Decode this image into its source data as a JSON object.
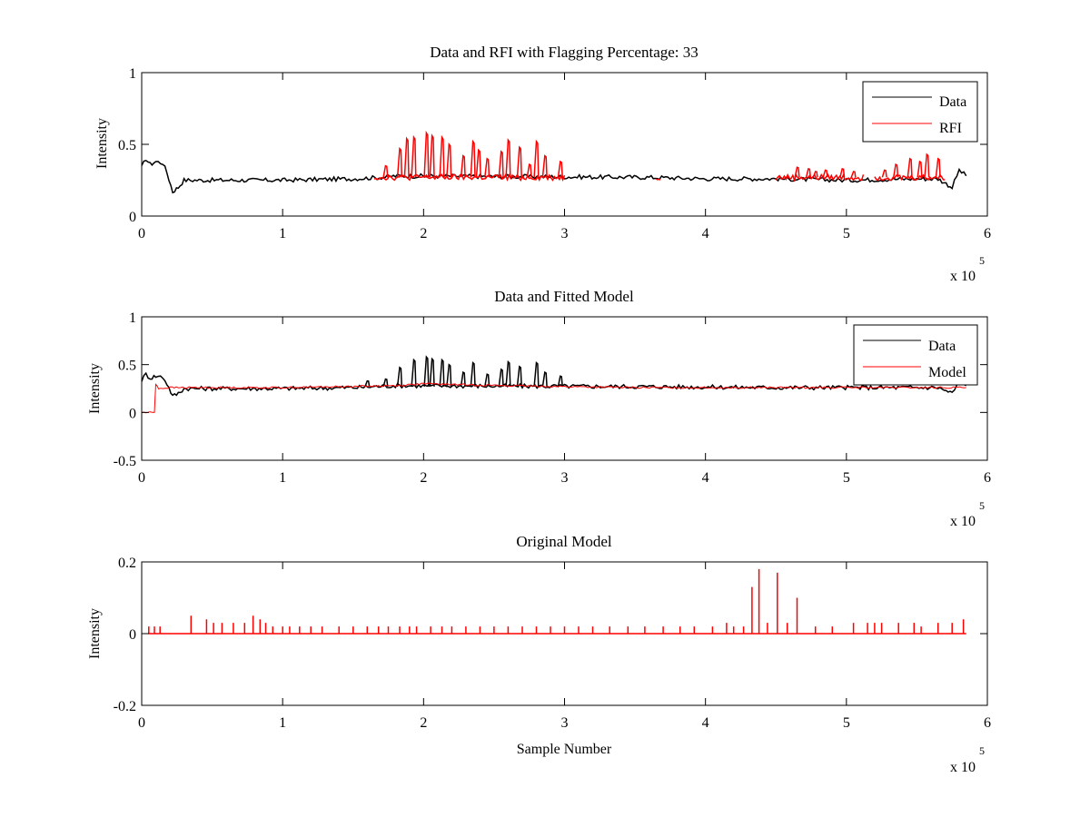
{
  "chart_data": [
    {
      "type": "line",
      "title": "Data and RFI with Flagging Percentage: 33",
      "xlabel": "",
      "ylabel": "Intensity",
      "xlim": [
        0,
        600000
      ],
      "ylim": [
        0,
        1
      ],
      "x_ticks": [
        "0",
        "1",
        "2",
        "3",
        "4",
        "5",
        "6"
      ],
      "y_ticks": [
        "0",
        "0.5",
        "1"
      ],
      "x_exponent_label": "x 10",
      "x_exponent": "5",
      "grid": false,
      "legend_position": "top-right",
      "series": [
        {
          "name": "Data",
          "color": "#000000",
          "x": [
            0,
            3000,
            6000,
            10000,
            15000,
            18000,
            22000,
            26000,
            30000,
            50000,
            100000,
            150000,
            170000,
            180000,
            360000,
            400000,
            450000,
            500000,
            550000,
            565000,
            575000,
            580000,
            585000
          ],
          "y": [
            0.34,
            0.4,
            0.36,
            0.38,
            0.37,
            0.3,
            0.17,
            0.2,
            0.25,
            0.25,
            0.25,
            0.26,
            0.27,
            0.28,
            0.27,
            0.26,
            0.26,
            0.25,
            0.26,
            0.26,
            0.2,
            0.32,
            0.28
          ]
        },
        {
          "name": "RFI",
          "color": "#ff0000",
          "segments": [
            [
              165000,
              300000
            ],
            [
              365000,
              368000
            ],
            [
              450000,
              512000
            ],
            [
              520000,
              570000
            ]
          ],
          "spikes": {
            "x": [
              173000,
              183000,
              188000,
              193000,
              202000,
              206000,
              213000,
              218000,
              228000,
              235000,
              239000,
              245000,
              255000,
              260000,
              268000,
              275000,
              280000,
              286000,
              297000,
              465000,
              473000,
              478000,
              485000,
              497000,
              505000,
              527000,
              535000,
              545000,
              552000,
              557000,
              565000
            ],
            "y": [
              0.35,
              0.47,
              0.54,
              0.55,
              0.58,
              0.56,
              0.55,
              0.5,
              0.42,
              0.52,
              0.46,
              0.4,
              0.45,
              0.53,
              0.48,
              0.36,
              0.52,
              0.42,
              0.38,
              0.34,
              0.33,
              0.31,
              0.32,
              0.33,
              0.31,
              0.32,
              0.36,
              0.4,
              0.38,
              0.43,
              0.4
            ]
          },
          "baseline": 0.27
        }
      ]
    },
    {
      "type": "line",
      "title": "Data and Fitted Model",
      "xlabel": "",
      "ylabel": "Intensity",
      "xlim": [
        0,
        600000
      ],
      "ylim": [
        -0.5,
        1
      ],
      "x_ticks": [
        "0",
        "1",
        "2",
        "3",
        "4",
        "5",
        "6"
      ],
      "y_ticks": [
        "-0.5",
        "0",
        "0.5",
        "1"
      ],
      "x_exponent_label": "x 10",
      "x_exponent": "5",
      "grid": false,
      "legend_position": "top-right",
      "series": [
        {
          "name": "Data",
          "color": "#000000",
          "x": [
            0,
            3000,
            6000,
            10000,
            15000,
            18000,
            22000,
            26000,
            30000,
            50000,
            100000,
            150000,
            180000,
            360000,
            450000,
            550000,
            565000,
            575000,
            580000,
            585000
          ],
          "y": [
            0.34,
            0.4,
            0.36,
            0.38,
            0.37,
            0.3,
            0.17,
            0.2,
            0.25,
            0.25,
            0.25,
            0.26,
            0.28,
            0.27,
            0.26,
            0.26,
            0.26,
            0.2,
            0.32,
            0.28
          ],
          "spikes": {
            "x": [
              160000,
              173000,
              183000,
              193000,
              202000,
              206000,
              213000,
              218000,
              228000,
              235000,
              245000,
              255000,
              260000,
              268000,
              280000,
              286000,
              297000
            ],
            "y": [
              0.33,
              0.35,
              0.47,
              0.55,
              0.58,
              0.56,
              0.55,
              0.5,
              0.42,
              0.52,
              0.4,
              0.45,
              0.53,
              0.48,
              0.52,
              0.42,
              0.38
            ]
          }
        },
        {
          "name": "Model",
          "color": "#ff0000",
          "x": [
            0,
            9000,
            10000,
            12000,
            20000,
            100000,
            180000,
            200000,
            260000,
            300000,
            350000,
            450000,
            550000,
            585000
          ],
          "y": [
            0.0,
            0.0,
            0.3,
            0.25,
            0.26,
            0.26,
            0.28,
            0.3,
            0.28,
            0.27,
            0.26,
            0.26,
            0.26,
            0.26
          ]
        }
      ]
    },
    {
      "type": "line",
      "title": "Original Model",
      "xlabel": "Sample Number",
      "ylabel": "Intensity",
      "xlim": [
        0,
        600000
      ],
      "ylim": [
        -0.2,
        0.2
      ],
      "x_ticks": [
        "0",
        "1",
        "2",
        "3",
        "4",
        "5",
        "6"
      ],
      "y_ticks": [
        "-0.2",
        "0",
        "0.2"
      ],
      "x_exponent_label": "x 10",
      "x_exponent": "5",
      "grid": false,
      "series": [
        {
          "name": "",
          "color": "#ff0000",
          "baseline": 0,
          "spikes": {
            "x": [
              5000,
              9000,
              13000,
              35000,
              46000,
              51000,
              57000,
              65000,
              73000,
              79000,
              84000,
              88000,
              93000,
              100000,
              105000,
              112000,
              120000,
              128000,
              140000,
              150000,
              160000,
              168000,
              175000,
              183000,
              190000,
              195000,
              205000,
              213000,
              220000,
              230000,
              240000,
              250000,
              260000,
              270000,
              280000,
              290000,
              300000,
              310000,
              320000,
              332000,
              345000,
              357000,
              370000,
              382000,
              392000,
              405000,
              415000,
              420000,
              427000,
              433000,
              438000,
              444000,
              451000,
              458000,
              465000,
              478000,
              490000,
              505000,
              515000,
              520000,
              525000,
              537000,
              548000,
              553000,
              565000,
              575000,
              583000
            ],
            "y": [
              0.02,
              0.02,
              0.02,
              0.05,
              0.04,
              0.03,
              0.03,
              0.03,
              0.03,
              0.05,
              0.04,
              0.03,
              0.02,
              0.02,
              0.02,
              0.02,
              0.02,
              0.02,
              0.02,
              0.02,
              0.02,
              0.02,
              0.02,
              0.02,
              0.02,
              0.02,
              0.02,
              0.02,
              0.02,
              0.02,
              0.02,
              0.02,
              0.02,
              0.02,
              0.02,
              0.02,
              0.02,
              0.02,
              0.02,
              0.02,
              0.02,
              0.02,
              0.02,
              0.02,
              0.02,
              0.02,
              0.03,
              0.02,
              0.02,
              0.13,
              0.18,
              0.03,
              0.17,
              0.03,
              0.1,
              0.02,
              0.02,
              0.03,
              0.03,
              0.03,
              0.03,
              0.03,
              0.03,
              0.02,
              0.03,
              0.03,
              0.04
            ]
          }
        }
      ]
    }
  ]
}
